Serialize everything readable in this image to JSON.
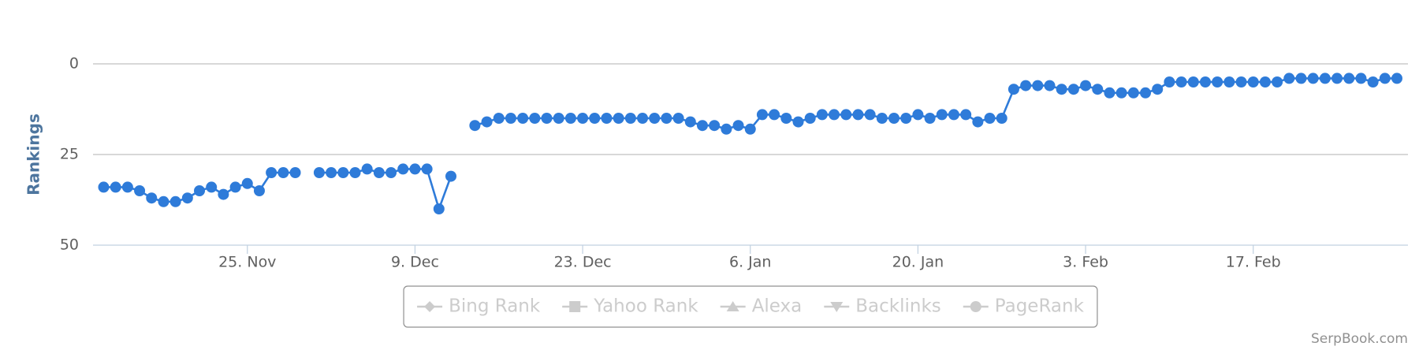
{
  "chart_data": {
    "type": "line",
    "y_axis_label": "Rankings",
    "categories": [
      null,
      null,
      null,
      null,
      null,
      null,
      null,
      null,
      null,
      null,
      null,
      null,
      "25. Nov",
      null,
      null,
      null,
      null,
      null,
      null,
      null,
      null,
      null,
      null,
      null,
      null,
      null,
      "9. Dec",
      null,
      null,
      null,
      null,
      null,
      null,
      null,
      null,
      null,
      null,
      null,
      null,
      null,
      "23. Dec",
      null,
      null,
      null,
      null,
      null,
      null,
      null,
      null,
      null,
      null,
      null,
      null,
      null,
      "6. Jan",
      null,
      null,
      null,
      null,
      null,
      null,
      null,
      null,
      null,
      null,
      null,
      null,
      null,
      "20. Jan",
      null,
      null,
      null,
      null,
      null,
      null,
      null,
      null,
      null,
      null,
      null,
      null,
      null,
      "3. Feb",
      null,
      null,
      null,
      null,
      null,
      null,
      null,
      null,
      null,
      null,
      null,
      null,
      null,
      "17. Feb",
      null,
      null,
      null,
      null,
      null,
      null,
      null,
      null,
      null,
      null,
      null,
      null
    ],
    "series": [
      {
        "color": "#2e7bd9",
        "values": [
          34,
          34,
          34,
          35,
          37,
          38,
          38,
          37,
          35,
          34,
          36,
          34,
          33,
          35,
          30,
          30,
          30,
          null,
          30,
          30,
          30,
          30,
          29,
          30,
          30,
          29,
          29,
          29,
          40,
          31,
          null,
          17,
          16,
          15,
          15,
          15,
          15,
          15,
          15,
          15,
          15,
          15,
          15,
          15,
          15,
          15,
          15,
          15,
          15,
          16,
          17,
          17,
          18,
          17,
          18,
          14,
          14,
          15,
          16,
          15,
          14,
          14,
          14,
          14,
          14,
          15,
          15,
          15,
          14,
          15,
          14,
          14,
          14,
          16,
          15,
          15,
          7,
          6,
          6,
          6,
          7,
          7,
          6,
          7,
          8,
          8,
          8,
          8,
          7,
          5,
          5,
          5,
          5,
          5,
          5,
          5,
          5,
          5,
          5,
          4,
          4,
          4,
          4,
          4,
          4,
          4,
          5,
          4,
          4
        ]
      }
    ],
    "ylim": [
      0,
      50
    ],
    "yticks": [
      0,
      25,
      50
    ],
    "y_reversed": true,
    "grid": true,
    "legend": {
      "position": "bottom",
      "items": [
        {
          "name": "Bing Rank",
          "symbol": "diamond"
        },
        {
          "name": "Yahoo Rank",
          "symbol": "square"
        },
        {
          "name": "Alexa",
          "symbol": "triangle"
        },
        {
          "name": "Backlinks",
          "symbol": "triangle-down"
        },
        {
          "name": "PageRank",
          "symbol": "circle"
        }
      ]
    },
    "credits": "SerpBook.com"
  }
}
